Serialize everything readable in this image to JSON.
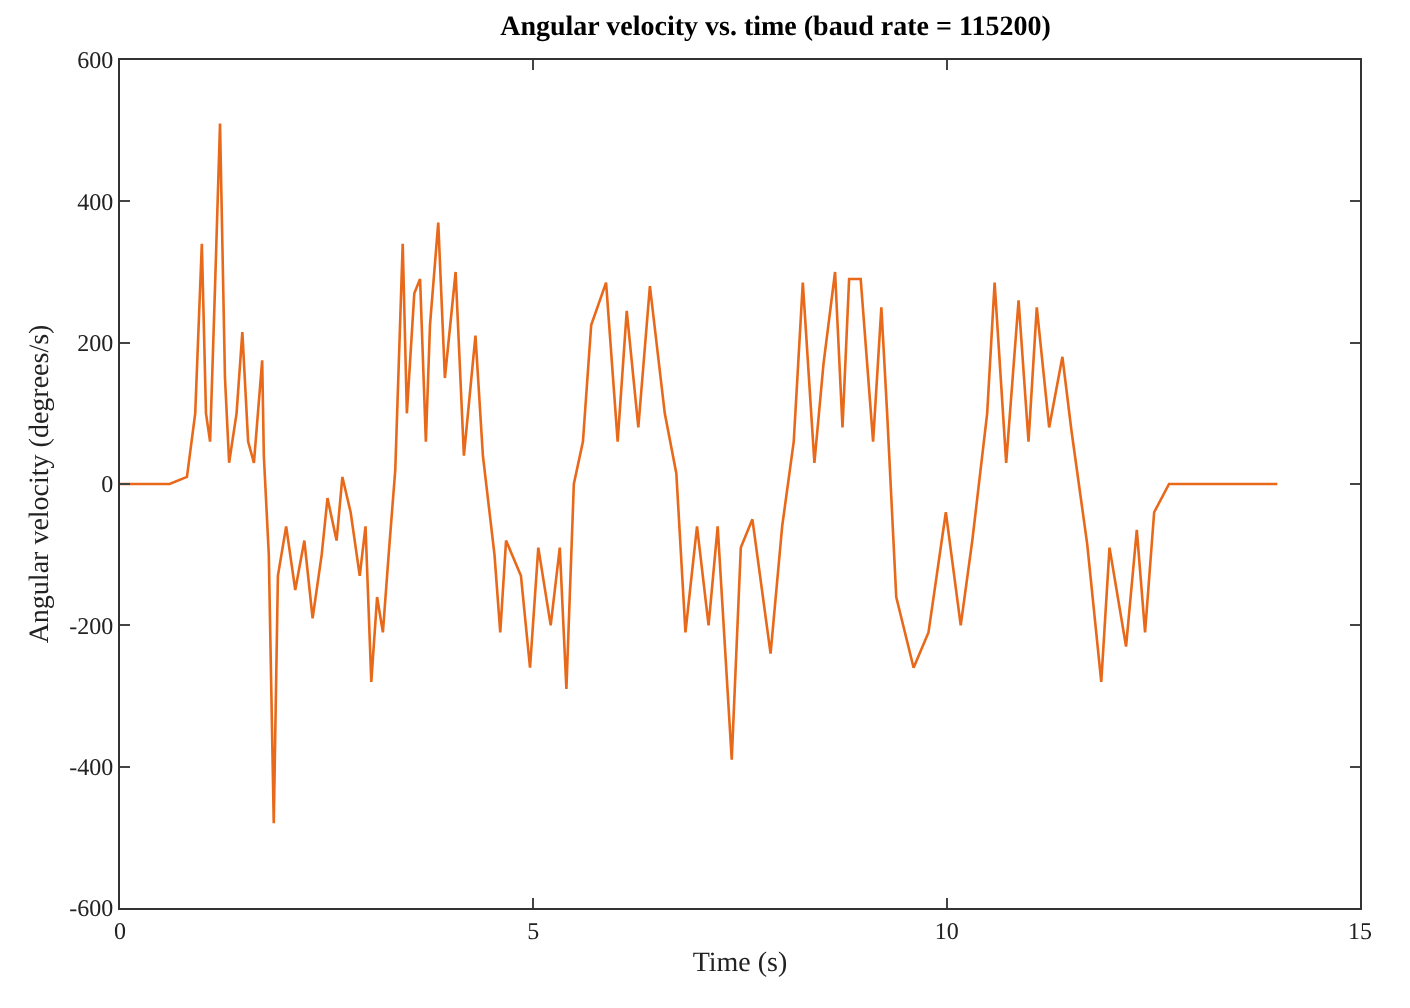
{
  "chart_data": {
    "type": "line",
    "title": "Angular velocity vs. time (baud rate = 115200)",
    "xlabel": "Time (s)",
    "ylabel": "Angular velocity (degrees/s)",
    "xlim": [
      0,
      15
    ],
    "xticks": [
      0,
      5,
      10,
      15
    ],
    "ylim": [
      -600,
      600
    ],
    "yticks": [
      -600,
      -400,
      -200,
      0,
      200,
      400,
      600
    ],
    "grid": false,
    "marker": "none",
    "line_style": "solid",
    "series": [
      {
        "color": "#e8691a",
        "x": [
          0,
          0.6,
          0.81,
          0.91,
          0.99,
          1.04,
          1.09,
          1.15,
          1.21,
          1.27,
          1.32,
          1.41,
          1.48,
          1.55,
          1.62,
          1.72,
          1.74,
          1.8,
          1.86,
          1.91,
          2.01,
          2.12,
          2.23,
          2.33,
          2.44,
          2.51,
          2.62,
          2.69,
          2.79,
          2.9,
          2.97,
          3.04,
          3.11,
          3.18,
          3.25,
          3.33,
          3.42,
          3.47,
          3.56,
          3.63,
          3.7,
          3.75,
          3.85,
          3.93,
          4.06,
          4.16,
          4.3,
          4.39,
          4.53,
          4.6,
          4.67,
          4.85,
          4.96,
          5.06,
          5.21,
          5.32,
          5.4,
          5.49,
          5.6,
          5.7,
          5.88,
          6.02,
          6.13,
          6.27,
          6.41,
          6.59,
          6.73,
          6.84,
          6.98,
          7.12,
          7.23,
          7.4,
          7.51,
          7.65,
          7.87,
          8.01,
          8.15,
          8.26,
          8.4,
          8.51,
          8.65,
          8.74,
          8.82,
          8.96,
          9.11,
          9.21,
          9.28,
          9.39,
          9.6,
          9.78,
          9.99,
          10.17,
          10.31,
          10.49,
          10.58,
          10.72,
          10.87,
          10.99,
          11.09,
          11.24,
          11.4,
          11.51,
          11.7,
          11.87,
          11.97,
          12.17,
          12.3,
          12.4,
          12.51,
          12.69,
          13.15,
          14
        ],
        "values": [
          0,
          0,
          10,
          100,
          340,
          100,
          60,
          280,
          510,
          150,
          30,
          100,
          215,
          60,
          30,
          175,
          40,
          -100,
          -480,
          -130,
          -60,
          -150,
          -80,
          -190,
          -100,
          -20,
          -80,
          10,
          -40,
          -130,
          -60,
          -280,
          -160,
          -210,
          -100,
          20,
          340,
          100,
          270,
          290,
          60,
          225,
          370,
          150,
          300,
          40,
          210,
          40,
          -100,
          -210,
          -80,
          -130,
          -260,
          -90,
          -200,
          -90,
          -290,
          0,
          60,
          225,
          285,
          60,
          245,
          80,
          280,
          100,
          15,
          -210,
          -60,
          -200,
          -60,
          -390,
          -90,
          -50,
          -240,
          -60,
          60,
          285,
          30,
          170,
          300,
          80,
          290,
          290,
          60,
          250,
          100,
          -160,
          -260,
          -210,
          -40,
          -200,
          -80,
          100,
          285,
          30,
          260,
          60,
          250,
          80,
          180,
          75,
          -85,
          -280,
          -90,
          -230,
          -65,
          -210,
          -40,
          0,
          0,
          0
        ]
      }
    ]
  }
}
